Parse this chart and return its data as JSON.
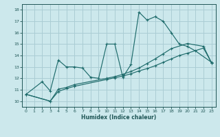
{
  "title": "",
  "xlabel": "Humidex (Indice chaleur)",
  "bg_color": "#cce8ec",
  "grid_color": "#aacdd4",
  "line_color": "#1e6b6b",
  "xlim": [
    -0.5,
    23.5
  ],
  "ylim": [
    9.5,
    18.5
  ],
  "xticks": [
    0,
    1,
    2,
    3,
    4,
    5,
    6,
    7,
    8,
    9,
    10,
    11,
    12,
    13,
    14,
    15,
    16,
    17,
    18,
    19,
    20,
    21,
    22,
    23
  ],
  "yticks": [
    10,
    11,
    12,
    13,
    14,
    15,
    16,
    17,
    18
  ],
  "line1_x": [
    0,
    2,
    3,
    4,
    5,
    6,
    7,
    8,
    9,
    10,
    11,
    12,
    13,
    14,
    15,
    16,
    17,
    18,
    19,
    20,
    21,
    23
  ],
  "line1_y": [
    10.6,
    11.7,
    10.9,
    13.6,
    13.0,
    13.0,
    12.9,
    12.1,
    12.0,
    15.0,
    15.0,
    12.1,
    13.2,
    17.8,
    17.1,
    17.4,
    17.0,
    16.0,
    15.0,
    14.8,
    14.4,
    13.4
  ],
  "line2_x": [
    0,
    3,
    4,
    5,
    6,
    10,
    11,
    12,
    13,
    14,
    15,
    16,
    17,
    18,
    19,
    20,
    22,
    23
  ],
  "line2_y": [
    10.6,
    10.0,
    10.85,
    11.1,
    11.3,
    11.9,
    12.05,
    12.2,
    12.4,
    12.65,
    12.85,
    13.1,
    13.4,
    13.7,
    14.0,
    14.2,
    14.65,
    13.35
  ],
  "line3_x": [
    0,
    3,
    4,
    5,
    6,
    10,
    11,
    12,
    13,
    14,
    15,
    16,
    17,
    18,
    20,
    22,
    23
  ],
  "line3_y": [
    10.6,
    10.0,
    11.05,
    11.2,
    11.45,
    12.0,
    12.15,
    12.35,
    12.6,
    12.9,
    13.3,
    13.7,
    14.15,
    14.6,
    15.05,
    14.8,
    13.35
  ]
}
